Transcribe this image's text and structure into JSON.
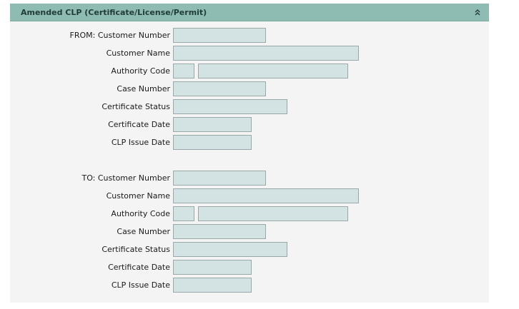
{
  "panel": {
    "title": "Amended CLP (Certificate/License/Permit)",
    "collapse_icon": "double-chevron-up-icon"
  },
  "from_section": {
    "customer_number_label": "FROM: Customer Number",
    "customer_name_label": "Customer Name",
    "authority_code_label": "Authority Code",
    "case_number_label": "Case Number",
    "certificate_status_label": "Certificate Status",
    "certificate_date_label": "Certificate Date",
    "clp_issue_date_label": "CLP Issue Date",
    "customer_number_value": "",
    "customer_name_value": "",
    "authority_code_value": "",
    "authority_desc_value": "",
    "case_number_value": "",
    "certificate_status_value": "",
    "certificate_date_value": "",
    "clp_issue_date_value": ""
  },
  "to_section": {
    "customer_number_label": "TO: Customer Number",
    "customer_name_label": "Customer Name",
    "authority_code_label": "Authority Code",
    "case_number_label": "Case Number",
    "certificate_status_label": "Certificate Status",
    "certificate_date_label": "Certificate Date",
    "clp_issue_date_label": "CLP Issue Date",
    "customer_number_value": "",
    "customer_name_value": "",
    "authority_code_value": "",
    "authority_desc_value": "",
    "case_number_value": "",
    "certificate_status_value": "",
    "certificate_date_value": "",
    "clp_issue_date_value": ""
  },
  "colors": {
    "header_bg": "#8fbcb2",
    "panel_bg": "#f4f4f4",
    "field_bg": "#d3e2e2",
    "field_border": "#9aa8a8"
  }
}
